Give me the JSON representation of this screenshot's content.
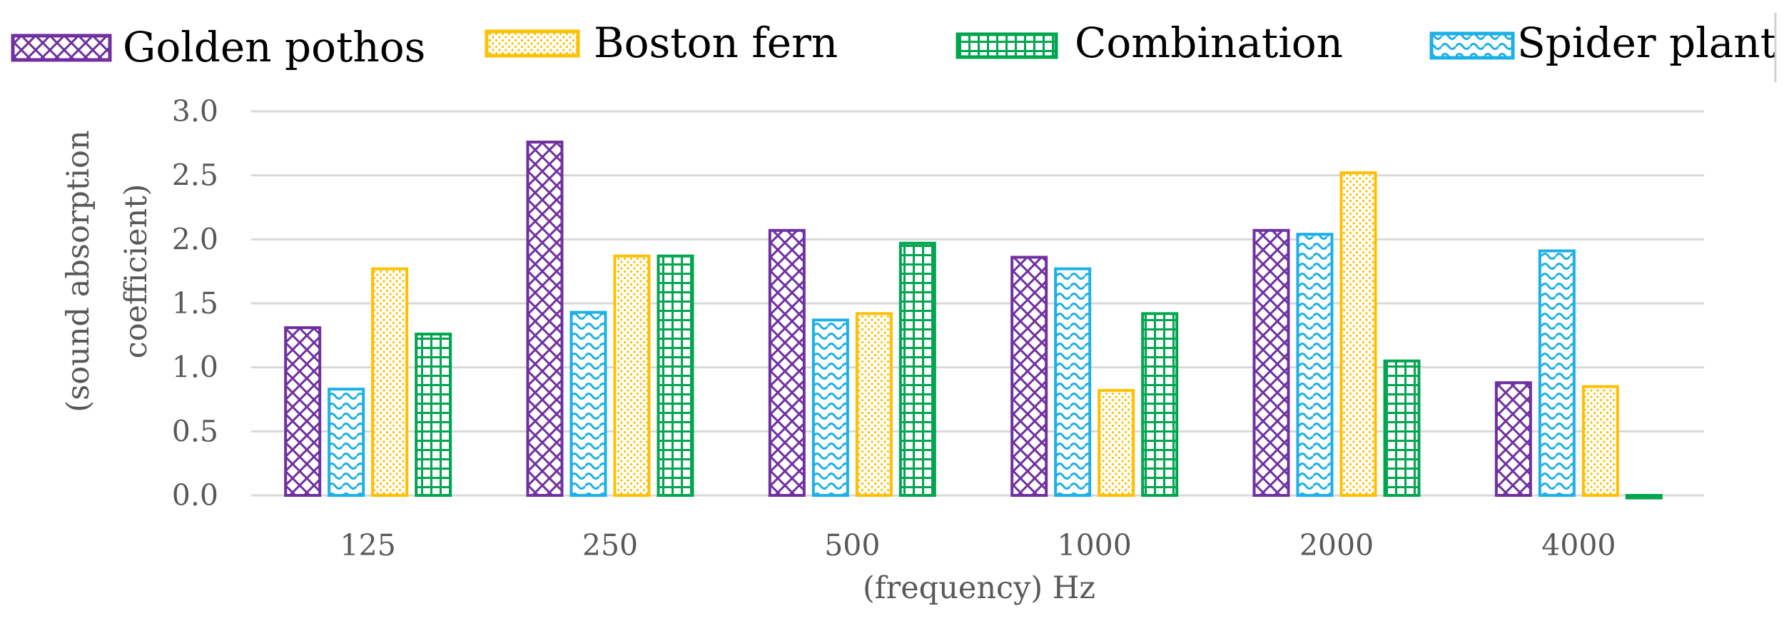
{
  "chart_data": {
    "type": "bar",
    "title": "",
    "xlabel": "(frequency) Hz",
    "ylabel_lines": [
      "(sound absorption",
      "coefficient)"
    ],
    "categories": [
      "125",
      "250",
      "500",
      "1000",
      "2000",
      "4000"
    ],
    "yticks": [
      "0.0",
      "0.5",
      "1.0",
      "1.5",
      "2.0",
      "2.5",
      "3.0"
    ],
    "ylim": [
      0,
      3.0
    ],
    "grid": true,
    "legend_position": "top",
    "legend_order": [
      "Golden pothos",
      "Boston fern",
      "Combination",
      "Spider plant"
    ],
    "series": [
      {
        "name": "Golden pothos",
        "color": "#7030a0",
        "pattern": "crosshatch-diamond",
        "values": [
          1.31,
          2.76,
          2.07,
          1.86,
          2.07,
          0.88
        ]
      },
      {
        "name": "Spider plant",
        "color": "#1cb0e6",
        "pattern": "wave",
        "values": [
          0.83,
          1.43,
          1.37,
          1.77,
          2.04,
          1.91
        ]
      },
      {
        "name": "Boston fern",
        "color": "#ffc000",
        "pattern": "dots",
        "values": [
          1.77,
          1.87,
          1.42,
          0.82,
          2.52,
          0.85
        ]
      },
      {
        "name": "Combination",
        "color": "#00a550",
        "pattern": "grid",
        "values": [
          1.26,
          1.87,
          1.97,
          1.42,
          1.05,
          -0.02
        ]
      }
    ]
  }
}
